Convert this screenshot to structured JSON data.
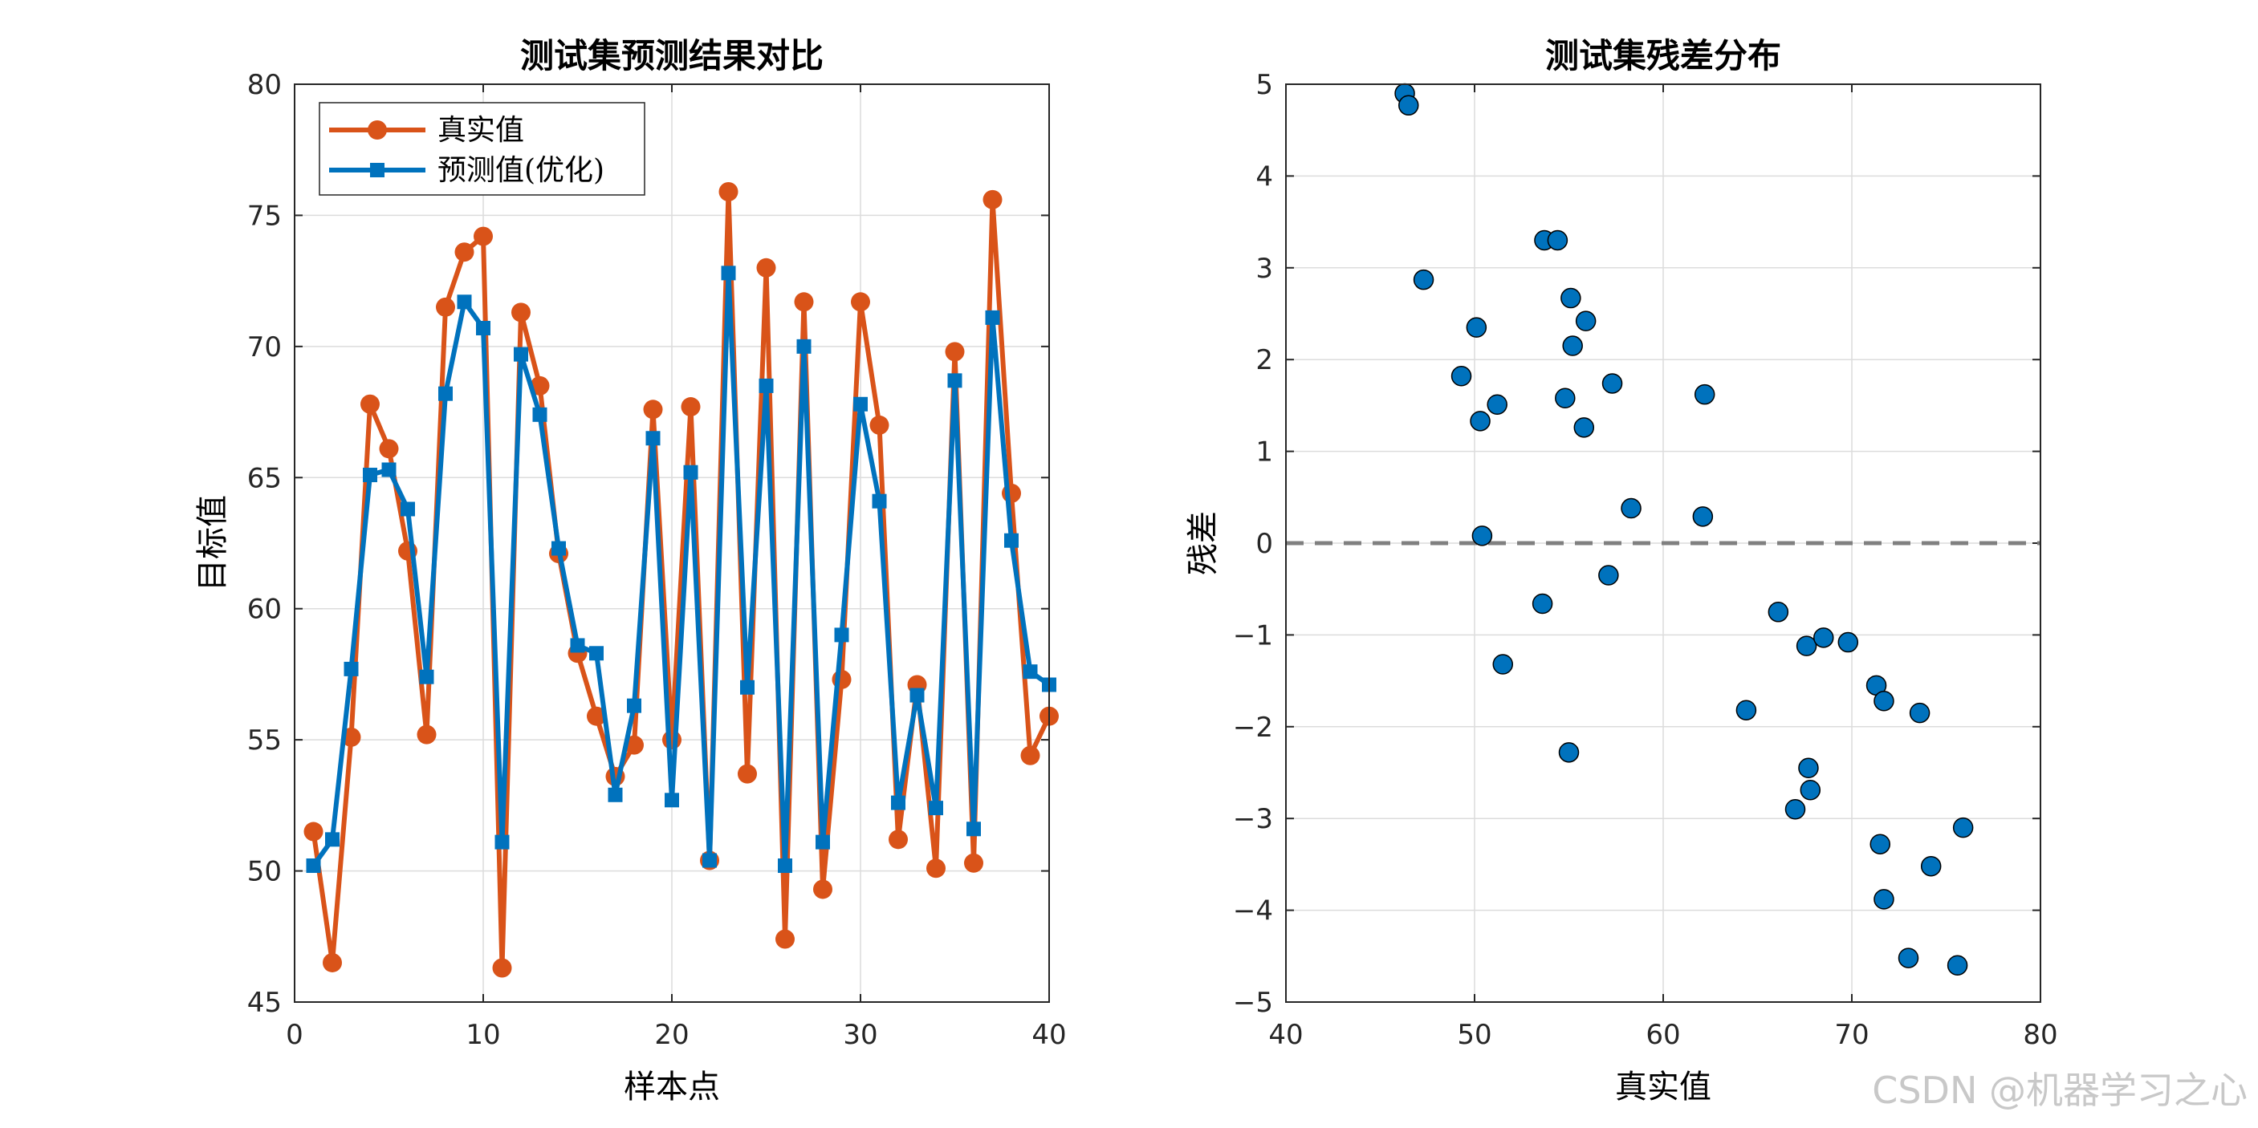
{
  "watermark": "CSDN @机器学习之心",
  "chart_data": [
    {
      "type": "line",
      "title": "测试集预测结果对比",
      "xlabel": "样本点",
      "ylabel": "目标值",
      "xlim": [
        0,
        40
      ],
      "ylim": [
        45,
        80
      ],
      "xticks": [
        0,
        10,
        20,
        30,
        40
      ],
      "yticks": [
        45,
        50,
        55,
        60,
        65,
        70,
        75,
        80
      ],
      "grid": true,
      "legend_position": "top-left",
      "x": [
        1,
        2,
        3,
        4,
        5,
        6,
        7,
        8,
        9,
        10,
        11,
        12,
        13,
        14,
        15,
        16,
        17,
        18,
        19,
        20,
        21,
        22,
        23,
        24,
        25,
        26,
        27,
        28,
        29,
        30,
        31,
        32,
        33,
        34,
        35,
        36,
        37,
        38,
        39,
        40
      ],
      "series": [
        {
          "name": "真实值",
          "color": "#d95319",
          "marker": "circle",
          "values": [
            51.5,
            46.5,
            55.1,
            67.8,
            66.1,
            62.2,
            55.2,
            71.5,
            73.6,
            74.2,
            46.3,
            71.3,
            68.5,
            62.1,
            58.3,
            55.9,
            53.6,
            54.8,
            67.6,
            55.0,
            67.7,
            50.4,
            75.9,
            53.7,
            73.0,
            47.4,
            71.7,
            49.3,
            57.3,
            71.7,
            67.0,
            51.2,
            57.1,
            50.1,
            69.8,
            50.3,
            75.6,
            64.4,
            54.4,
            55.9
          ]
        },
        {
          "name": "预测值(优化)",
          "color": "#0072bd",
          "marker": "square",
          "values": [
            50.2,
            51.2,
            57.7,
            65.1,
            65.3,
            63.8,
            57.4,
            68.2,
            71.7,
            70.7,
            51.1,
            69.7,
            67.4,
            62.3,
            58.6,
            58.3,
            52.9,
            56.3,
            66.5,
            52.7,
            65.2,
            50.4,
            72.8,
            57.0,
            68.5,
            50.2,
            70.0,
            51.1,
            59.0,
            67.8,
            64.1,
            52.6,
            56.7,
            52.4,
            68.7,
            51.6,
            71.1,
            62.6,
            57.6,
            57.1
          ]
        }
      ]
    },
    {
      "type": "scatter",
      "title": "测试集残差分布",
      "xlabel": "真实值",
      "ylabel": "残差",
      "xlim": [
        40,
        80
      ],
      "ylim": [
        -5,
        5
      ],
      "xticks": [
        40,
        50,
        60,
        70,
        80
      ],
      "yticks": [
        -5,
        -4,
        -3,
        -2,
        -1,
        0,
        1,
        2,
        3,
        4,
        5
      ],
      "grid": true,
      "reference_line": {
        "y": 0,
        "style": "dashed",
        "color": "#808080"
      },
      "marker_color": "#0072bd",
      "points": [
        [
          46.3,
          4.9
        ],
        [
          46.5,
          4.77
        ],
        [
          47.3,
          2.87
        ],
        [
          49.3,
          1.82
        ],
        [
          50.1,
          2.35
        ],
        [
          50.3,
          1.33
        ],
        [
          50.4,
          0.08
        ],
        [
          51.2,
          1.51
        ],
        [
          51.5,
          -1.32
        ],
        [
          53.6,
          -0.66
        ],
        [
          53.7,
          3.3
        ],
        [
          54.4,
          3.3
        ],
        [
          54.8,
          1.58
        ],
        [
          55.0,
          -2.28
        ],
        [
          55.1,
          2.67
        ],
        [
          55.2,
          2.15
        ],
        [
          55.8,
          1.26
        ],
        [
          55.9,
          2.42
        ],
        [
          57.1,
          -0.35
        ],
        [
          57.3,
          1.74
        ],
        [
          58.3,
          0.38
        ],
        [
          62.1,
          0.29
        ],
        [
          62.2,
          1.62
        ],
        [
          64.4,
          -1.82
        ],
        [
          66.1,
          -0.75
        ],
        [
          67.0,
          -2.9
        ],
        [
          67.6,
          -1.12
        ],
        [
          67.7,
          -2.45
        ],
        [
          67.8,
          -2.69
        ],
        [
          68.5,
          -1.03
        ],
        [
          69.8,
          -1.08
        ],
        [
          71.3,
          -1.55
        ],
        [
          71.5,
          -3.28
        ],
        [
          71.7,
          -1.72
        ],
        [
          71.7,
          -3.88
        ],
        [
          73.0,
          -4.52
        ],
        [
          73.6,
          -1.85
        ],
        [
          74.2,
          -3.52
        ],
        [
          75.6,
          -4.6
        ],
        [
          75.9,
          -3.1
        ]
      ]
    }
  ]
}
